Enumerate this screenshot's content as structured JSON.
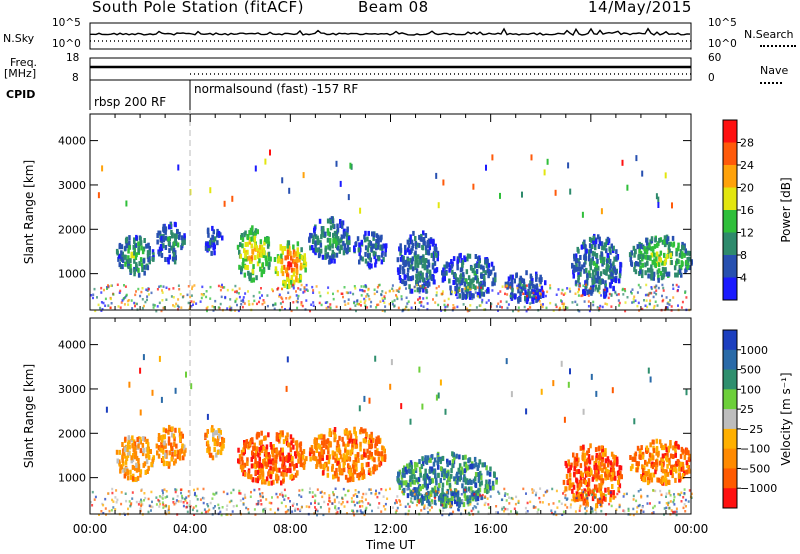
{
  "header": {
    "station": "South Pole Station (fitACF)",
    "beam": "Beam 08",
    "date": "14/May/2015"
  },
  "top_panels": {
    "nsky_label": "N.Sky",
    "nsky_ticks": [
      "10^5",
      "10^0"
    ],
    "nsearch_label": "N.Search",
    "nsearch_ticks": [
      "10^5",
      "10^0"
    ],
    "freq_label_1": "Freq.",
    "freq_label_2": "[MHz]",
    "freq_ticks": [
      "18",
      "8"
    ],
    "nave_label": "Nave",
    "nave_ticks": [
      "60",
      "0"
    ],
    "cpid_label": "CPID",
    "cpid_segments": [
      {
        "label": "rbsp 200 RF",
        "start_hour": 0
      },
      {
        "label": "normalsound (fast) -157 RF",
        "start_hour": 4
      }
    ]
  },
  "chart_data": [
    {
      "type": "heatmap",
      "title": "",
      "ylabel": "Slant Range [km]",
      "xlim": [
        0,
        24
      ],
      "ylim": [
        180,
        4600
      ],
      "yticks": [
        "1000",
        "2000",
        "3000",
        "4000"
      ],
      "colorbar": {
        "label": "Power [dB]",
        "range": [
          0,
          32
        ],
        "ticks": [
          "4",
          "8",
          "12",
          "16",
          "20",
          "24",
          "28"
        ],
        "colors": [
          "#1a1aff",
          "#2750b0",
          "#2e8a6c",
          "#2fbf3a",
          "#e3e60f",
          "#ffa20a",
          "#ff5a0a",
          "#ff1010"
        ]
      },
      "clusters": [
        {
          "t0": 1.0,
          "t1": 2.5,
          "r0": 1000,
          "r1": 1900,
          "level": 0.45
        },
        {
          "t0": 2.6,
          "t1": 3.8,
          "r0": 1300,
          "r1": 2200,
          "level": 0.35
        },
        {
          "t0": 4.5,
          "t1": 5.3,
          "r0": 1500,
          "r1": 2100,
          "level": 0.25
        },
        {
          "t0": 5.8,
          "t1": 7.2,
          "r0": 900,
          "r1": 2100,
          "level": 0.75
        },
        {
          "t0": 7.3,
          "t1": 8.6,
          "r0": 750,
          "r1": 1800,
          "level": 0.95
        },
        {
          "t0": 8.7,
          "t1": 10.4,
          "r0": 1300,
          "r1": 2300,
          "level": 0.4
        },
        {
          "t0": 10.5,
          "t1": 11.8,
          "r0": 1200,
          "r1": 2000,
          "level": 0.3
        },
        {
          "t0": 12.2,
          "t1": 13.9,
          "r0": 600,
          "r1": 2000,
          "level": 0.3
        },
        {
          "t0": 14.0,
          "t1": 16.2,
          "r0": 500,
          "r1": 1500,
          "level": 0.35
        },
        {
          "t0": 16.5,
          "t1": 18.2,
          "r0": 400,
          "r1": 1100,
          "level": 0.25
        },
        {
          "t0": 19.2,
          "t1": 21.2,
          "r0": 500,
          "r1": 1900,
          "level": 0.35
        },
        {
          "t0": 21.5,
          "t1": 24.0,
          "r0": 900,
          "r1": 1900,
          "level": 0.55
        }
      ]
    },
    {
      "type": "heatmap",
      "title": "",
      "xlabel": "Time UT",
      "ylabel": "Slant Range [km]",
      "xlim": [
        0,
        24
      ],
      "ylim": [
        180,
        4600
      ],
      "xticks": [
        "00:00",
        "04:00",
        "08:00",
        "12:00",
        "16:00",
        "20:00",
        "00:00"
      ],
      "yticks": [
        "1000",
        "2000",
        "3000",
        "4000"
      ],
      "colorbar": {
        "label": "Velocity [m s⁻¹]",
        "range": [
          -1400,
          1400
        ],
        "ticks": [
          "1000",
          "500",
          "100",
          "25",
          "−25",
          "−100",
          "−500",
          "−1000"
        ],
        "colors": [
          "#1c3fbf",
          "#2a6aa8",
          "#2f8f6e",
          "#6dcf3a",
          "#bdbdbd",
          "#ffb000",
          "#ff8a00",
          "#ff5a00",
          "#ff1010"
        ]
      },
      "clusters": [
        {
          "t0": 1.0,
          "t1": 2.5,
          "r0": 1000,
          "r1": 2000,
          "level": 0.65
        },
        {
          "t0": 2.6,
          "t1": 3.8,
          "r0": 1300,
          "r1": 2200,
          "level": 0.7
        },
        {
          "t0": 4.5,
          "t1": 5.3,
          "r0": 1500,
          "r1": 2200,
          "level": 0.7
        },
        {
          "t0": 5.8,
          "t1": 8.6,
          "r0": 900,
          "r1": 2100,
          "level": 0.8
        },
        {
          "t0": 8.7,
          "t1": 11.8,
          "r0": 1000,
          "r1": 2200,
          "level": 0.75
        },
        {
          "t0": 12.2,
          "t1": 16.2,
          "r0": 400,
          "r1": 1600,
          "level": 0.25
        },
        {
          "t0": 18.8,
          "t1": 21.2,
          "r0": 400,
          "r1": 1800,
          "level": 0.8
        },
        {
          "t0": 21.5,
          "t1": 24.0,
          "r0": 900,
          "r1": 1900,
          "level": 0.75
        }
      ]
    }
  ]
}
